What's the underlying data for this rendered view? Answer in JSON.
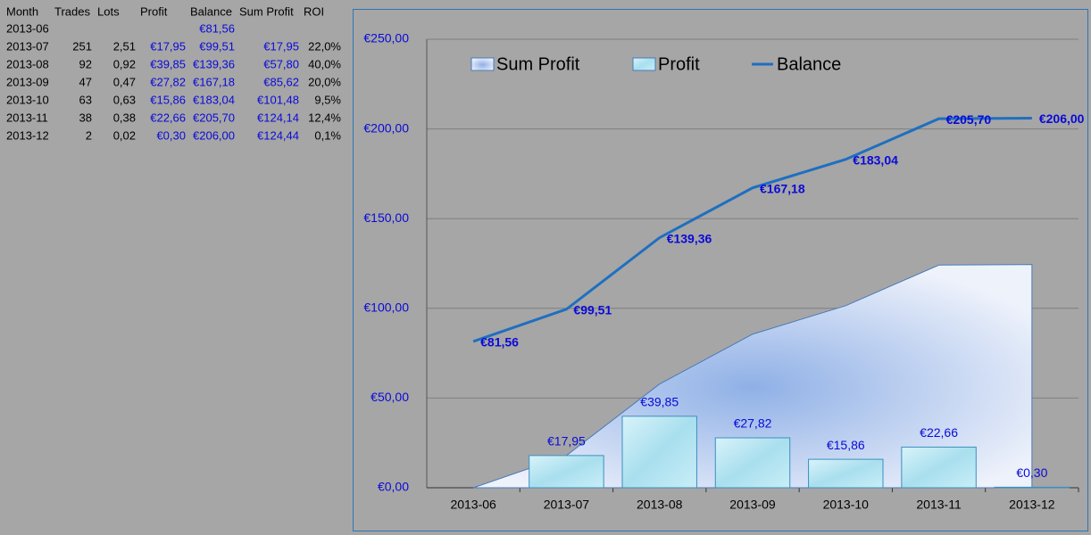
{
  "table": {
    "header": [
      "Month",
      "Trades",
      "Lots",
      "Profit",
      "Balance",
      "Sum Profit",
      "ROI"
    ],
    "rows": [
      [
        "2013-06",
        null,
        null,
        null,
        "€81,56",
        null,
        null
      ],
      [
        "2013-07",
        "251",
        "2,51",
        "€17,95",
        "€99,51",
        "€17,95",
        "22,0%"
      ],
      [
        "2013-08",
        "92",
        "0,92",
        "€39,85",
        "€139,36",
        "€57,80",
        "40,0%"
      ],
      [
        "2013-09",
        "47",
        "0,47",
        "€27,82",
        "€167,18",
        "€85,62",
        "20,0%"
      ],
      [
        "2013-10",
        "63",
        "0,63",
        "€15,86",
        "€183,04",
        "€101,48",
        "9,5%"
      ],
      [
        "2013-11",
        "38",
        "0,38",
        "€22,66",
        "€205,70",
        "€124,14",
        "12,4%"
      ],
      [
        "2013-12",
        "2",
        "0,02",
        "€0,30",
        "€206,00",
        "€124,44",
        "0,1%"
      ]
    ]
  },
  "chart_data": {
    "type": "combo",
    "categories": [
      "2013-06",
      "2013-07",
      "2013-08",
      "2013-09",
      "2013-10",
      "2013-11",
      "2013-12"
    ],
    "series": [
      {
        "name": "Sum Profit",
        "type": "area",
        "color": "#c3d2ee",
        "values": [
          0,
          17.95,
          57.8,
          85.62,
          101.48,
          124.14,
          124.44
        ]
      },
      {
        "name": "Profit",
        "type": "bar",
        "color": "#b9e6f1",
        "values": [
          null,
          17.95,
          39.85,
          27.82,
          15.86,
          22.66,
          0.3
        ],
        "value_labels": [
          null,
          "€17,95",
          "€39,85",
          "€27,82",
          "€15,86",
          "€22,66",
          "€0,30"
        ]
      },
      {
        "name": "Balance",
        "type": "line",
        "color": "#1f6fc0",
        "values": [
          81.56,
          99.51,
          139.36,
          167.18,
          183.04,
          205.7,
          206.0
        ],
        "value_labels": [
          "€81,56",
          "€99,51",
          "€139,36",
          "€167,18",
          "€183,04",
          "€205,70",
          "€206,00"
        ]
      }
    ],
    "ylim": [
      0,
      250
    ],
    "yticks": [
      {
        "value": 0,
        "label": "€0,00"
      },
      {
        "value": 50,
        "label": "€50,00"
      },
      {
        "value": 100,
        "label": "€100,00"
      },
      {
        "value": 150,
        "label": "€150,00"
      },
      {
        "value": 200,
        "label": "€200,00"
      },
      {
        "value": 250,
        "label": "€250,00"
      }
    ],
    "grid": true
  }
}
